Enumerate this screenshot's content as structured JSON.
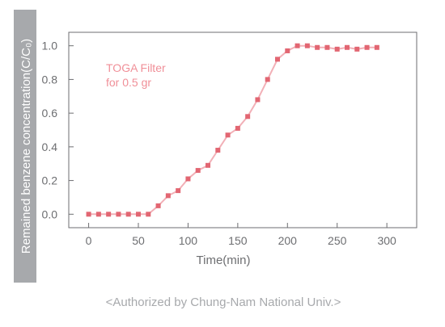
{
  "chart_data": {
    "type": "line",
    "title": "",
    "xlabel": "Time(min)",
    "ylabel": "Remained benzene concentration(C/C₀)",
    "xlim": [
      -20,
      330
    ],
    "ylim": [
      -0.08,
      1.08
    ],
    "x_ticks": [
      0,
      50,
      100,
      150,
      200,
      250,
      300
    ],
    "y_ticks": [
      0.0,
      0.2,
      0.4,
      0.6,
      0.8,
      1.0
    ],
    "x_tick_labels": [
      "0",
      "50",
      "100",
      "150",
      "200",
      "250",
      "300"
    ],
    "y_tick_labels": [
      "0.0",
      "0.2",
      "0.4",
      "0.6",
      "0.8",
      "1.0"
    ],
    "grid": false,
    "annotation": {
      "lines": [
        "TOGA Filter",
        "for 0.5 gr"
      ]
    },
    "series": [
      {
        "name": "TOGA Filter for 0.5 gr",
        "color": "#e26672",
        "line_color": "#f2b0b7",
        "x": [
          0,
          10,
          20,
          30,
          40,
          50,
          60,
          70,
          80,
          90,
          100,
          110,
          120,
          130,
          140,
          150,
          160,
          170,
          180,
          190,
          200,
          210,
          220,
          230,
          240,
          250,
          260,
          270,
          280,
          290
        ],
        "y": [
          0.0,
          0.0,
          0.0,
          0.0,
          0.0,
          0.0,
          0.0,
          0.05,
          0.11,
          0.14,
          0.21,
          0.26,
          0.29,
          0.38,
          0.47,
          0.51,
          0.58,
          0.68,
          0.8,
          0.92,
          0.97,
          1.0,
          1.0,
          0.99,
          0.99,
          0.98,
          0.99,
          0.98,
          0.99,
          0.99
        ]
      }
    ]
  },
  "footer": {
    "credit": "<Authorized by Chung-Nam National Univ.>"
  },
  "colors": {
    "ylabel_band": "#a7a9ac",
    "axis": "#6d6e71",
    "annotation": "#f08f98",
    "credit": "#a7a9ac"
  }
}
